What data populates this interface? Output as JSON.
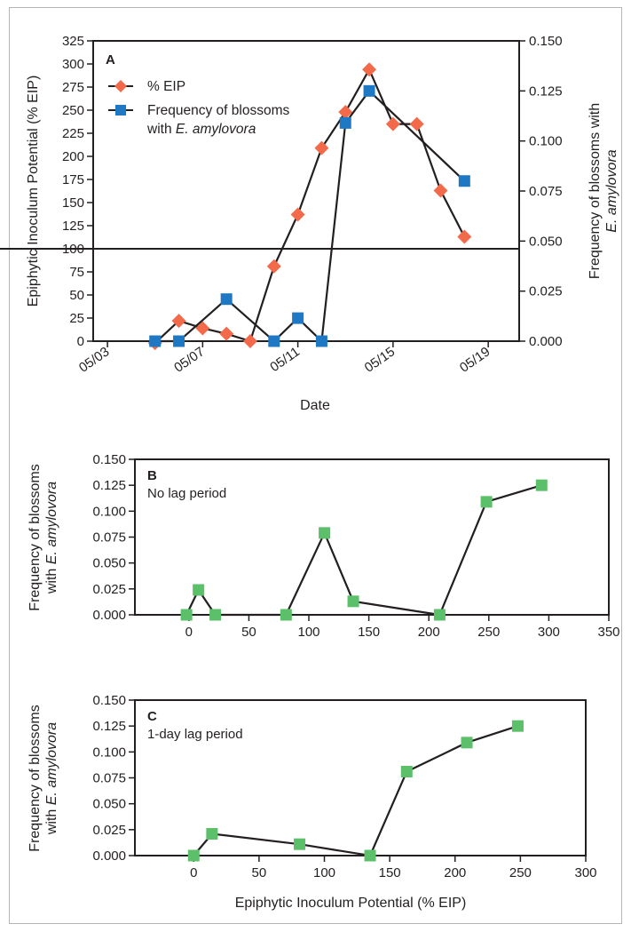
{
  "chart_data": [
    {
      "panel": "A",
      "type": "line",
      "xlabel": "Date",
      "ylabel": "Epiphytic Inoculum Potential (% EIP)",
      "y2label_line1": "Frequency of blossoms with",
      "y2label_line2": "E. amylovora",
      "x_ticks": [
        "05/03",
        "05/07",
        "05/11",
        "05/15",
        "05/19"
      ],
      "y_ticks": [
        "0",
        "25",
        "50",
        "75",
        "100",
        "125",
        "150",
        "175",
        "200",
        "225",
        "250",
        "275",
        "300",
        "325"
      ],
      "y2_ticks": [
        "0.000",
        "0.025",
        "0.050",
        "0.075",
        "0.100",
        "0.125",
        "0.150"
      ],
      "ylim": [
        0,
        325
      ],
      "y2lim": [
        0,
        0.15
      ],
      "reference_line_y": 100,
      "legend_placement": "top-left",
      "series": [
        {
          "name": "% EIP",
          "axis": "left",
          "color": "#f26a4a",
          "marker": "diamond",
          "x": [
            "05/05",
            "05/06",
            "05/07",
            "05/08",
            "05/09",
            "05/10",
            "05/11",
            "05/12",
            "05/13",
            "05/14",
            "05/15",
            "05/16",
            "05/17",
            "05/18"
          ],
          "values": [
            -2,
            22,
            14,
            8,
            0,
            81,
            137,
            209,
            248,
            294,
            235,
            235,
            163,
            113
          ]
        },
        {
          "name": "Frequency of blossoms with E. amylovora",
          "axis": "right",
          "color": "#1f78c4",
          "marker": "square",
          "x": [
            "05/05",
            "05/06",
            "05/08",
            "05/10",
            "05/11",
            "05/12",
            "05/13",
            "05/14",
            "05/18"
          ],
          "values": [
            0.0,
            0.0,
            0.021,
            0.0,
            0.0115,
            0.0,
            0.109,
            0.125,
            0.08
          ]
        }
      ]
    },
    {
      "panel": "B",
      "note": "No lag period",
      "type": "line",
      "xlabel": "",
      "ylabel_line1": "Frequency of blossoms",
      "ylabel_line2": "with E. amylovora",
      "x_ticks": [
        "0",
        "50",
        "100",
        "150",
        "200",
        "250",
        "300",
        "350"
      ],
      "y_ticks": [
        "0.000",
        "0.025",
        "0.050",
        "0.075",
        "0.100",
        "0.125",
        "0.150"
      ],
      "xlim": [
        -45,
        350
      ],
      "ylim": [
        0,
        0.15
      ],
      "color": "#5cbf6a",
      "marker": "square",
      "x": [
        -2,
        8,
        22,
        81,
        113,
        137,
        209,
        248,
        294
      ],
      "values": [
        0.0,
        0.024,
        0.0,
        0.0,
        0.079,
        0.013,
        0.0,
        0.109,
        0.125
      ]
    },
    {
      "panel": "C",
      "note": "1-day lag period",
      "type": "line",
      "xlabel": "Epiphytic Inoculum Potential (% EIP)",
      "ylabel_line1": "Frequency of blossoms",
      "ylabel_line2": "with E. amylovora",
      "x_ticks": [
        "0",
        "50",
        "100",
        "150",
        "200",
        "250",
        "300"
      ],
      "y_ticks": [
        "0.000",
        "0.025",
        "0.050",
        "0.075",
        "0.100",
        "0.125",
        "0.150"
      ],
      "xlim": [
        -45,
        300
      ],
      "ylim": [
        0,
        0.15
      ],
      "color": "#5cbf6a",
      "marker": "square",
      "x": [
        0,
        14,
        81,
        135,
        163,
        209,
        248
      ],
      "values": [
        0.0,
        0.021,
        0.011,
        0.0,
        0.081,
        0.109,
        0.125
      ]
    }
  ]
}
